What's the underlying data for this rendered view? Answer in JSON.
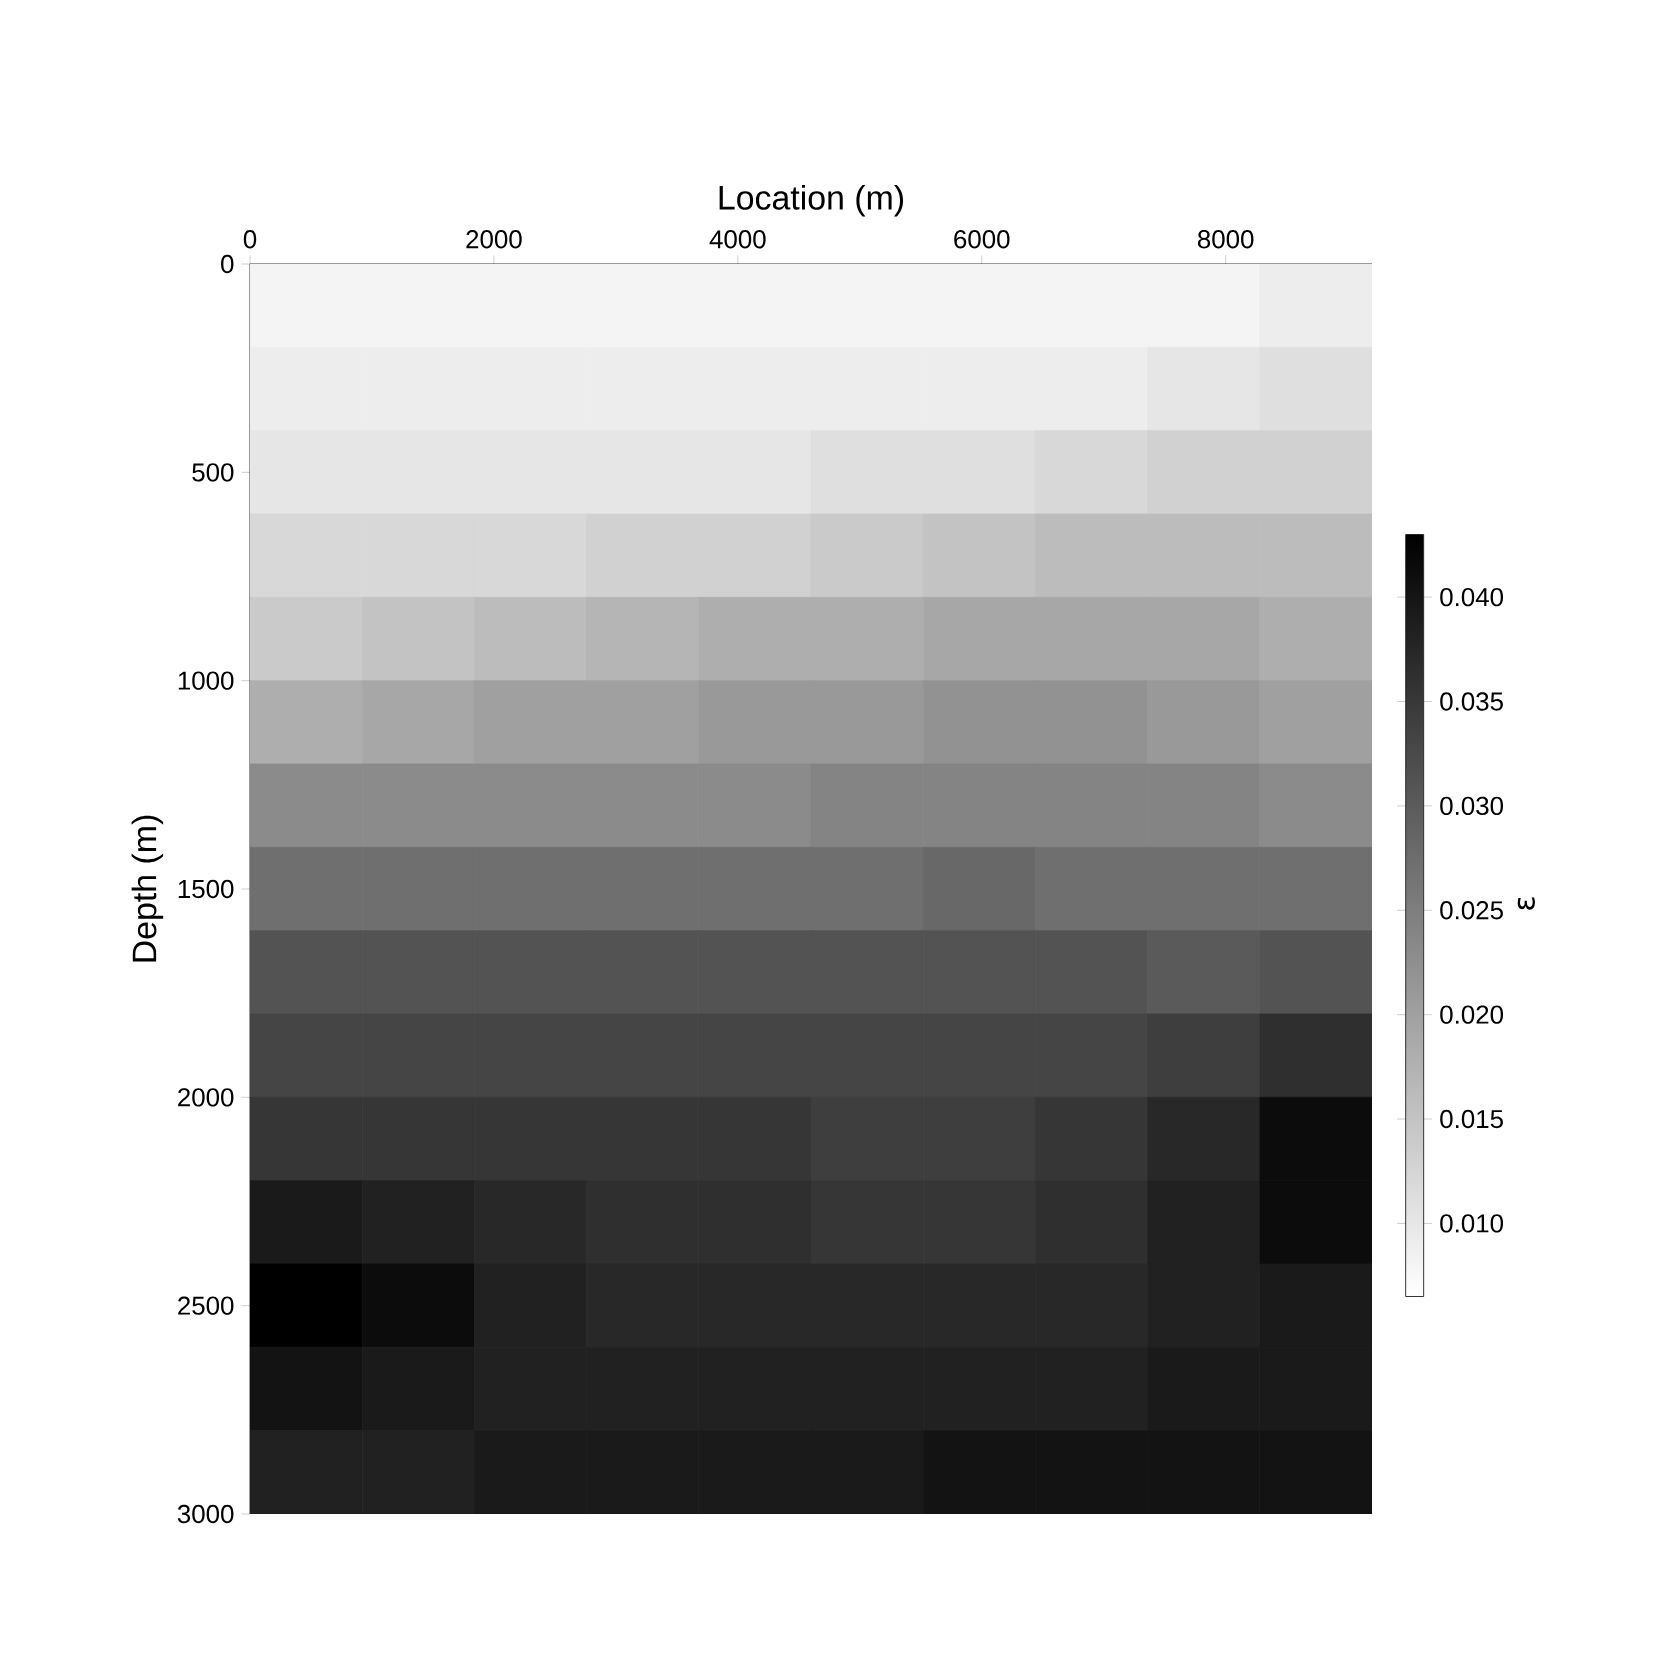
{
  "chart_data": {
    "type": "heatmap",
    "xlabel": "Location (m)",
    "ylabel": "Depth (m)",
    "clabel": "ε",
    "xlim": [
      0,
      9200
    ],
    "xticks": [
      0,
      2000,
      4000,
      6000,
      8000
    ],
    "ylim": [
      3000,
      0
    ],
    "yticks": [
      0,
      500,
      1000,
      1500,
      2000,
      2500,
      3000
    ],
    "clim": [
      0.0065,
      0.043
    ],
    "cticks": [
      {
        "value": 0.01,
        "label": "0.010"
      },
      {
        "value": 0.015,
        "label": "0.015"
      },
      {
        "value": 0.02,
        "label": "0.020"
      },
      {
        "value": 0.025,
        "label": "0.025"
      },
      {
        "value": 0.03,
        "label": "0.030"
      },
      {
        "value": 0.035,
        "label": "0.035"
      },
      {
        "value": 0.04,
        "label": "0.040"
      }
    ],
    "cells": [
      [
        0.008,
        0.008,
        0.008,
        0.008,
        0.008,
        0.008,
        0.008,
        0.008,
        0.008,
        0.009
      ],
      [
        0.009,
        0.009,
        0.009,
        0.009,
        0.009,
        0.009,
        0.009,
        0.009,
        0.01,
        0.011
      ],
      [
        0.01,
        0.01,
        0.01,
        0.01,
        0.01,
        0.011,
        0.011,
        0.012,
        0.013,
        0.013
      ],
      [
        0.012,
        0.012,
        0.012,
        0.013,
        0.013,
        0.014,
        0.015,
        0.016,
        0.016,
        0.016
      ],
      [
        0.014,
        0.015,
        0.016,
        0.017,
        0.018,
        0.018,
        0.019,
        0.019,
        0.019,
        0.018
      ],
      [
        0.018,
        0.019,
        0.02,
        0.02,
        0.021,
        0.021,
        0.022,
        0.022,
        0.021,
        0.02
      ],
      [
        0.023,
        0.023,
        0.023,
        0.023,
        0.023,
        0.024,
        0.024,
        0.024,
        0.024,
        0.023
      ],
      [
        0.027,
        0.027,
        0.027,
        0.027,
        0.027,
        0.027,
        0.028,
        0.027,
        0.027,
        0.027
      ],
      [
        0.031,
        0.031,
        0.031,
        0.031,
        0.031,
        0.031,
        0.031,
        0.031,
        0.03,
        0.031
      ],
      [
        0.033,
        0.033,
        0.033,
        0.033,
        0.033,
        0.033,
        0.033,
        0.033,
        0.034,
        0.036
      ],
      [
        0.035,
        0.035,
        0.035,
        0.035,
        0.035,
        0.034,
        0.034,
        0.035,
        0.037,
        0.041
      ],
      [
        0.039,
        0.038,
        0.037,
        0.036,
        0.036,
        0.035,
        0.035,
        0.036,
        0.038,
        0.041
      ],
      [
        0.043,
        0.041,
        0.038,
        0.037,
        0.037,
        0.037,
        0.037,
        0.037,
        0.038,
        0.039
      ],
      [
        0.04,
        0.039,
        0.038,
        0.038,
        0.038,
        0.038,
        0.038,
        0.038,
        0.039,
        0.039
      ],
      [
        0.038,
        0.038,
        0.039,
        0.039,
        0.039,
        0.039,
        0.04,
        0.04,
        0.04,
        0.04
      ]
    ]
  }
}
